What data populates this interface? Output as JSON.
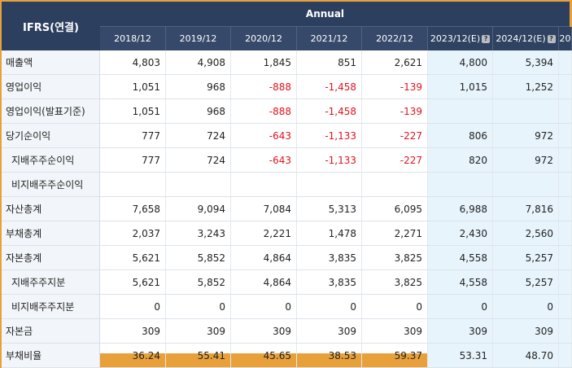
{
  "table": {
    "corner": "IFRS(연결)",
    "group": "Annual",
    "columns": [
      "2018/12",
      "2019/12",
      "2020/12",
      "2021/12",
      "2022/12",
      "2023/12(E)",
      "2024/12(E)",
      "20"
    ],
    "rows": [
      {
        "label": "매출액",
        "sub": false,
        "values": [
          "4,803",
          "4,908",
          "1,845",
          "851",
          "2,621",
          "4,800",
          "5,394",
          ""
        ]
      },
      {
        "label": "영업이익",
        "sub": false,
        "values": [
          "1,051",
          "968",
          "-888",
          "-1,458",
          "-139",
          "1,015",
          "1,252",
          ""
        ]
      },
      {
        "label": "영업이익(발표기준)",
        "sub": false,
        "values": [
          "1,051",
          "968",
          "-888",
          "-1,458",
          "-139",
          "",
          "",
          ""
        ]
      },
      {
        "label": "당기순이익",
        "sub": false,
        "values": [
          "777",
          "724",
          "-643",
          "-1,133",
          "-227",
          "806",
          "972",
          ""
        ]
      },
      {
        "label": "지배주주순이익",
        "sub": true,
        "values": [
          "777",
          "724",
          "-643",
          "-1,133",
          "-227",
          "820",
          "972",
          ""
        ]
      },
      {
        "label": "비지배주주순이익",
        "sub": true,
        "values": [
          "",
          "",
          "",
          "",
          "",
          "",
          "",
          ""
        ]
      },
      {
        "label": "자산총계",
        "sub": false,
        "values": [
          "7,658",
          "9,094",
          "7,084",
          "5,313",
          "6,095",
          "6,988",
          "7,816",
          ""
        ]
      },
      {
        "label": "부채총계",
        "sub": false,
        "values": [
          "2,037",
          "3,243",
          "2,221",
          "1,478",
          "2,271",
          "2,430",
          "2,560",
          ""
        ]
      },
      {
        "label": "자본총계",
        "sub": false,
        "values": [
          "5,621",
          "5,852",
          "4,864",
          "3,835",
          "3,825",
          "4,558",
          "5,257",
          ""
        ]
      },
      {
        "label": "지배주주지분",
        "sub": true,
        "values": [
          "5,621",
          "5,852",
          "4,864",
          "3,835",
          "3,825",
          "4,558",
          "5,257",
          ""
        ]
      },
      {
        "label": "비지배주주지분",
        "sub": true,
        "values": [
          "0",
          "0",
          "0",
          "0",
          "0",
          "0",
          "0",
          ""
        ]
      },
      {
        "label": "자본금",
        "sub": false,
        "values": [
          "309",
          "309",
          "309",
          "309",
          "309",
          "309",
          "309",
          ""
        ]
      },
      {
        "label": "부채비율",
        "sub": false,
        "values": [
          "36.24",
          "55.41",
          "45.65",
          "38.53",
          "59.37",
          "53.31",
          "48.70",
          ""
        ]
      }
    ]
  }
}
